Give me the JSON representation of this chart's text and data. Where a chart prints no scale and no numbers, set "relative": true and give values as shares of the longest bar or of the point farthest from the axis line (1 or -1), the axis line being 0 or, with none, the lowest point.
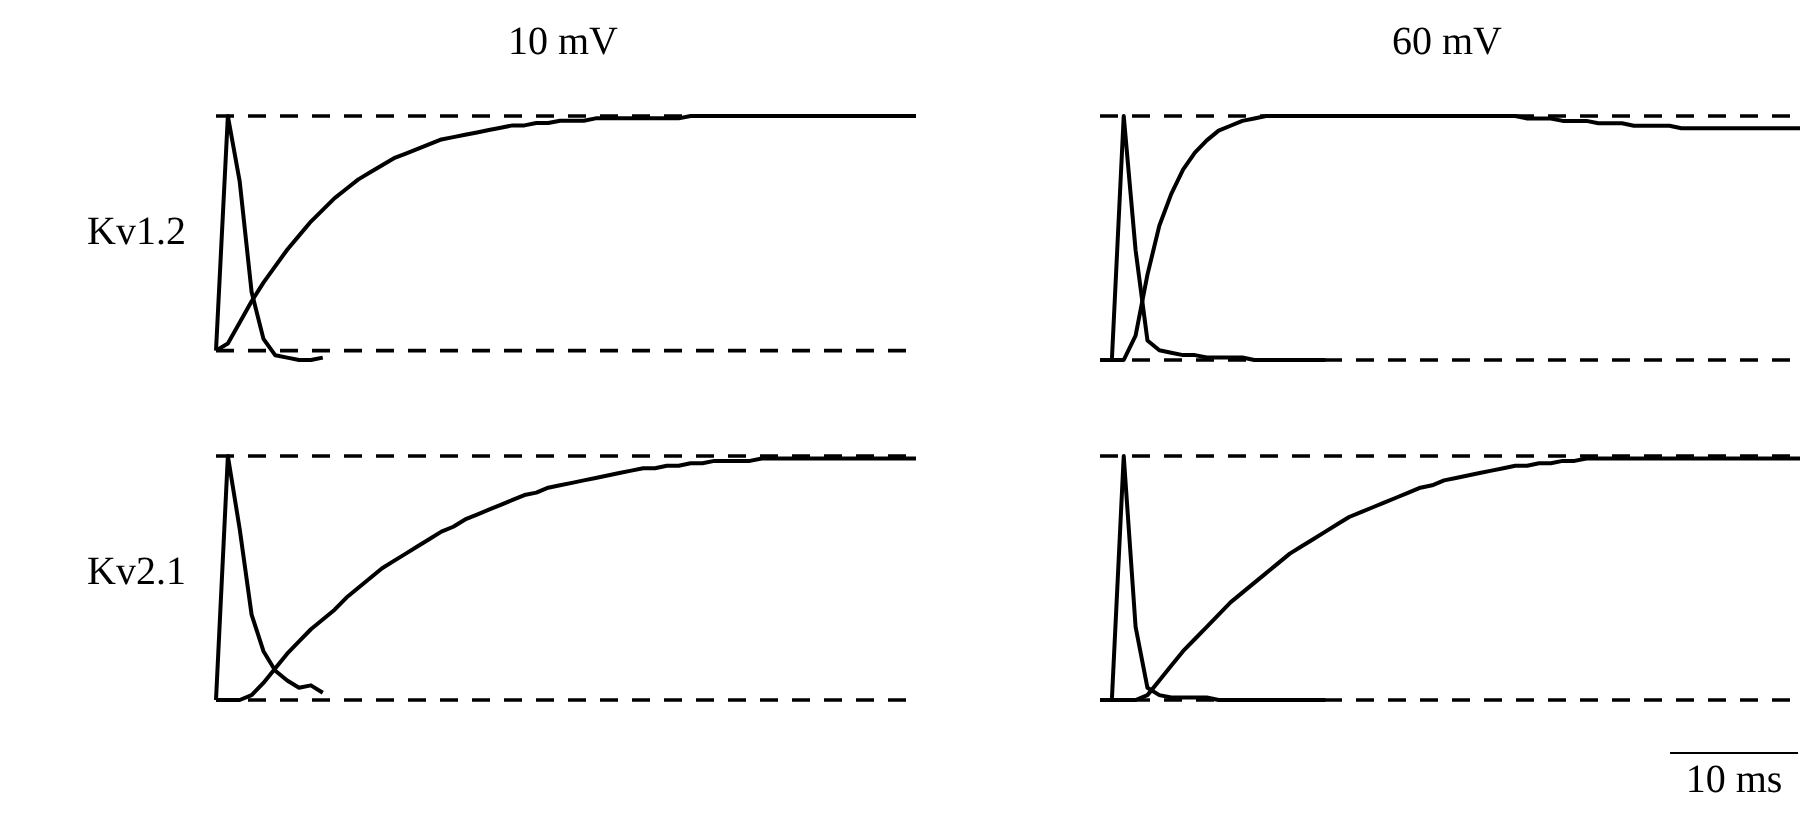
{
  "chart_data": [
    {
      "type": "line",
      "title": "10 mV",
      "ylabel": "Kv1.2",
      "relative": true,
      "categories": [
        null,
        null,
        null,
        null,
        null,
        null,
        null,
        null,
        null,
        null,
        null,
        null,
        null,
        null,
        null,
        null,
        null,
        null,
        null,
        null,
        null,
        null,
        null,
        null,
        null,
        null,
        null,
        null,
        null,
        null,
        null,
        null,
        null,
        null,
        null,
        null,
        null,
        null,
        null,
        null,
        null,
        null,
        null,
        null,
        null,
        null,
        null,
        null,
        null,
        null,
        null,
        null,
        null,
        null,
        null,
        null,
        null,
        null,
        null,
        null
      ],
      "series": [
        {
          "color": "#000000",
          "values": [
            0,
            1,
            0.72,
            0.25,
            0.05,
            -0.02,
            -0.03,
            -0.04,
            -0.04,
            -0.03,
            null,
            null,
            null,
            null,
            null,
            null,
            null,
            null,
            null,
            null,
            null,
            null,
            null,
            null,
            null,
            null,
            null,
            null,
            null,
            null,
            null,
            null,
            null,
            null,
            null,
            null,
            null,
            null,
            null,
            null,
            null,
            null,
            null,
            null,
            null,
            null,
            null,
            null,
            null,
            null,
            null,
            null,
            null,
            null,
            null,
            null,
            null,
            null,
            null,
            null
          ]
        },
        {
          "color": "#000000",
          "values": [
            0,
            0.03,
            0.12,
            0.21,
            0.29,
            0.36,
            0.43,
            0.49,
            0.55,
            0.6,
            0.65,
            0.69,
            0.73,
            0.76,
            0.79,
            0.82,
            0.84,
            0.86,
            0.88,
            0.9,
            0.91,
            0.92,
            0.93,
            0.94,
            0.95,
            0.96,
            0.96,
            0.97,
            0.97,
            0.98,
            0.98,
            0.98,
            0.99,
            0.99,
            0.99,
            0.99,
            0.99,
            0.99,
            0.99,
            0.99,
            1,
            1,
            1,
            1,
            1,
            1,
            1,
            1,
            1,
            1,
            1,
            1,
            1,
            1,
            1,
            1,
            1,
            1,
            1,
            1
          ]
        }
      ],
      "ref_lines": [
        {
          "axis": "y",
          "value": 0,
          "color": "#000000",
          "line_style": "dashed"
        },
        {
          "axis": "y",
          "value": 1,
          "color": "#000000",
          "line_style": "dashed"
        }
      ]
    },
    {
      "type": "line",
      "title": "60 mV",
      "relative": true,
      "categories": [
        null,
        null,
        null,
        null,
        null,
        null,
        null,
        null,
        null,
        null,
        null,
        null,
        null,
        null,
        null,
        null,
        null,
        null,
        null,
        null,
        null,
        null,
        null,
        null,
        null,
        null,
        null,
        null,
        null,
        null,
        null,
        null,
        null,
        null,
        null,
        null,
        null,
        null,
        null,
        null,
        null,
        null,
        null,
        null,
        null,
        null,
        null,
        null,
        null,
        null,
        null,
        null,
        null,
        null,
        null,
        null,
        null,
        null,
        null,
        null
      ],
      "series": [
        {
          "color": "#000000",
          "values": [
            0,
            0,
            1,
            0.45,
            0.08,
            0.04,
            0.03,
            0.02,
            0.02,
            0.01,
            0.01,
            0.01,
            0.01,
            0,
            0,
            0,
            0,
            0,
            0,
            0,
            null,
            null,
            null,
            null,
            null,
            null,
            null,
            null,
            null,
            null,
            null,
            null,
            null,
            null,
            null,
            null,
            null,
            null,
            null,
            null,
            null,
            null,
            null,
            null,
            null,
            null,
            null,
            null,
            null,
            null,
            null,
            null,
            null,
            null,
            null,
            null,
            null,
            null,
            null,
            null
          ]
        },
        {
          "color": "#000000",
          "values": [
            0,
            0,
            0,
            0.1,
            0.35,
            0.55,
            0.68,
            0.78,
            0.85,
            0.9,
            0.94,
            0.96,
            0.98,
            0.99,
            1,
            1,
            1,
            1,
            1,
            1,
            1,
            1,
            1,
            1,
            1,
            1,
            1,
            1,
            1,
            1,
            1,
            1,
            1,
            1,
            1,
            1,
            0.99,
            0.99,
            0.99,
            0.98,
            0.98,
            0.98,
            0.97,
            0.97,
            0.97,
            0.96,
            0.96,
            0.96,
            0.96,
            0.95,
            0.95,
            0.95,
            0.95,
            0.95,
            0.95,
            0.95,
            0.95,
            0.95,
            0.95,
            0.95
          ]
        }
      ],
      "ref_lines": [
        {
          "axis": "y",
          "value": 0,
          "color": "#000000",
          "line_style": "dashed"
        },
        {
          "axis": "y",
          "value": 1,
          "color": "#000000",
          "line_style": "dashed"
        }
      ]
    },
    {
      "type": "line",
      "ylabel": "Kv2.1",
      "relative": true,
      "categories": [
        null,
        null,
        null,
        null,
        null,
        null,
        null,
        null,
        null,
        null,
        null,
        null,
        null,
        null,
        null,
        null,
        null,
        null,
        null,
        null,
        null,
        null,
        null,
        null,
        null,
        null,
        null,
        null,
        null,
        null,
        null,
        null,
        null,
        null,
        null,
        null,
        null,
        null,
        null,
        null,
        null,
        null,
        null,
        null,
        null,
        null,
        null,
        null,
        null,
        null,
        null,
        null,
        null,
        null,
        null,
        null,
        null,
        null,
        null,
        null
      ],
      "series": [
        {
          "color": "#000000",
          "values": [
            0,
            1,
            0.7,
            0.35,
            0.2,
            0.12,
            0.08,
            0.05,
            0.06,
            0.03,
            null,
            null,
            null,
            null,
            null,
            null,
            null,
            null,
            null,
            null,
            null,
            null,
            null,
            null,
            null,
            null,
            null,
            null,
            null,
            null,
            null,
            null,
            null,
            null,
            null,
            null,
            null,
            null,
            null,
            null,
            null,
            null,
            null,
            null,
            null,
            null,
            null,
            null,
            null,
            null,
            null,
            null,
            null,
            null,
            null,
            null,
            null,
            null,
            null,
            null
          ]
        },
        {
          "color": "#000000",
          "values": [
            0,
            0,
            0,
            0.02,
            0.07,
            0.13,
            0.19,
            0.24,
            0.29,
            0.33,
            0.37,
            0.42,
            0.46,
            0.5,
            0.54,
            0.57,
            0.6,
            0.63,
            0.66,
            0.69,
            0.71,
            0.74,
            0.76,
            0.78,
            0.8,
            0.82,
            0.84,
            0.85,
            0.87,
            0.88,
            0.89,
            0.9,
            0.91,
            0.92,
            0.93,
            0.94,
            0.95,
            0.95,
            0.96,
            0.96,
            0.97,
            0.97,
            0.98,
            0.98,
            0.98,
            0.98,
            0.99,
            0.99,
            0.99,
            0.99,
            0.99,
            0.99,
            0.99,
            0.99,
            0.99,
            0.99,
            0.99,
            0.99,
            0.99,
            0.99
          ]
        }
      ],
      "ref_lines": [
        {
          "axis": "y",
          "value": 0,
          "color": "#000000",
          "line_style": "dashed"
        },
        {
          "axis": "y",
          "value": 1,
          "color": "#000000",
          "line_style": "dashed"
        }
      ]
    },
    {
      "type": "line",
      "relative": true,
      "categories": [
        null,
        null,
        null,
        null,
        null,
        null,
        null,
        null,
        null,
        null,
        null,
        null,
        null,
        null,
        null,
        null,
        null,
        null,
        null,
        null,
        null,
        null,
        null,
        null,
        null,
        null,
        null,
        null,
        null,
        null,
        null,
        null,
        null,
        null,
        null,
        null,
        null,
        null,
        null,
        null,
        null,
        null,
        null,
        null,
        null,
        null,
        null,
        null,
        null,
        null,
        null,
        null,
        null,
        null,
        null,
        null,
        null,
        null,
        null,
        null
      ],
      "series": [
        {
          "color": "#000000",
          "values": [
            0,
            0,
            1,
            0.3,
            0.05,
            0.02,
            0.01,
            0.01,
            0.01,
            0.01,
            0,
            0,
            0,
            0,
            0,
            0,
            0,
            0,
            0,
            0,
            null,
            null,
            null,
            null,
            null,
            null,
            null,
            null,
            null,
            null,
            null,
            null,
            null,
            null,
            null,
            null,
            null,
            null,
            null,
            null,
            null,
            null,
            null,
            null,
            null,
            null,
            null,
            null,
            null,
            null,
            null,
            null,
            null,
            null,
            null,
            null,
            null,
            null,
            null,
            null
          ]
        },
        {
          "color": "#000000",
          "values": [
            0,
            0,
            0,
            0,
            0.02,
            0.08,
            0.14,
            0.2,
            0.25,
            0.3,
            0.35,
            0.4,
            0.44,
            0.48,
            0.52,
            0.56,
            0.6,
            0.63,
            0.66,
            0.69,
            0.72,
            0.75,
            0.77,
            0.79,
            0.81,
            0.83,
            0.85,
            0.87,
            0.88,
            0.9,
            0.91,
            0.92,
            0.93,
            0.94,
            0.95,
            0.96,
            0.96,
            0.97,
            0.97,
            0.98,
            0.98,
            0.99,
            0.99,
            0.99,
            0.99,
            0.99,
            0.99,
            0.99,
            0.99,
            0.99,
            0.99,
            0.99,
            0.99,
            0.99,
            0.99,
            0.99,
            0.99,
            0.99,
            0.99,
            0.99
          ]
        }
      ],
      "ref_lines": [
        {
          "axis": "y",
          "value": 0,
          "color": "#000000",
          "line_style": "dashed"
        },
        {
          "axis": "y",
          "value": 1,
          "color": "#000000",
          "line_style": "dashed"
        }
      ],
      "annotations": [
        "10 ms"
      ]
    }
  ]
}
